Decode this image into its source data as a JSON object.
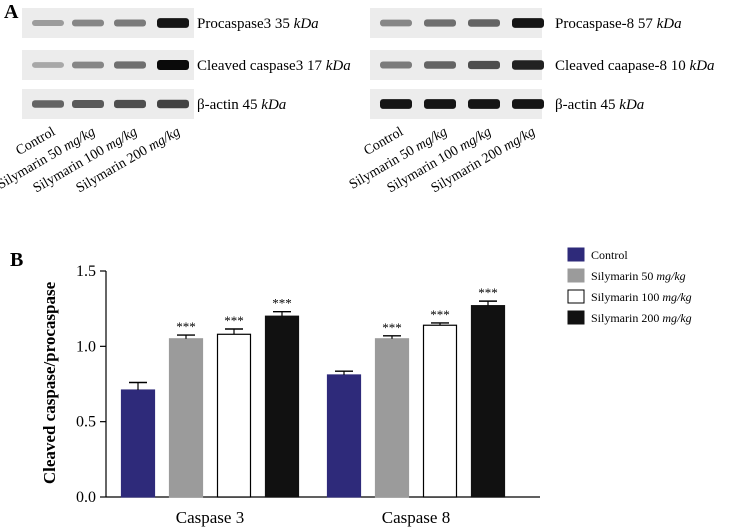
{
  "panel_a_label": "A",
  "panel_b_label": "B",
  "blot_left": {
    "rows": [
      {
        "prefix": "Procaspase3 35 ",
        "unit": "kDa"
      },
      {
        "prefix": "Cleaved caspase3 17 ",
        "unit": "kDa"
      },
      {
        "prefix": "β-actin 45 ",
        "unit": "kDa"
      }
    ],
    "lanes": [
      {
        "prefix": "Control",
        "unit": ""
      },
      {
        "prefix": "Silymarin 50 ",
        "unit": "mg/kg"
      },
      {
        "prefix": "Silymarin 100 ",
        "unit": "mg/kg"
      },
      {
        "prefix": "Silymarin 200 ",
        "unit": "mg/kg"
      }
    ],
    "band_intensity": [
      [
        0.35,
        0.45,
        0.5,
        0.95
      ],
      [
        0.3,
        0.45,
        0.55,
        1.0
      ],
      [
        0.6,
        0.65,
        0.7,
        0.75
      ]
    ]
  },
  "blot_right": {
    "rows": [
      {
        "prefix": "Procaspase-8 57 ",
        "unit": "kDa"
      },
      {
        "prefix": "Cleaved caapase-8 10 ",
        "unit": "kDa"
      },
      {
        "prefix": "β-actin 45 ",
        "unit": "kDa"
      }
    ],
    "lanes": [
      {
        "prefix": "Control",
        "unit": ""
      },
      {
        "prefix": "Silymarin 50 ",
        "unit": "mg/kg"
      },
      {
        "prefix": "Silymarin 100 ",
        "unit": "mg/kg"
      },
      {
        "prefix": "Silymarin 200 ",
        "unit": "mg/kg"
      }
    ],
    "band_intensity": [
      [
        0.45,
        0.55,
        0.6,
        0.95
      ],
      [
        0.5,
        0.6,
        0.7,
        0.9
      ],
      [
        0.95,
        0.95,
        0.95,
        0.95
      ]
    ]
  },
  "chart_data": {
    "type": "bar",
    "title": "",
    "xlabel": "",
    "ylabel": "Cleaved caspase/procaspase",
    "ylim": [
      0,
      1.5
    ],
    "yticks": [
      "0.0",
      "0.5",
      "1.0",
      "1.5"
    ],
    "ytick_values": [
      0,
      0.5,
      1.0,
      1.5
    ],
    "categories": [
      "Caspase 3",
      "Caspase 8"
    ],
    "series": [
      {
        "name": "Control",
        "name_prefix": "Control",
        "name_unit": "",
        "values": [
          0.71,
          0.81
        ],
        "errors": [
          0.05,
          0.025
        ],
        "significance": [
          "",
          ""
        ],
        "fill": "#2e2a7a",
        "stroke": "#2e2a7a"
      },
      {
        "name": "Silymarin 50 mg/kg",
        "name_prefix": "Silymarin 50 ",
        "name_unit": "mg/kg",
        "values": [
          1.05,
          1.05
        ],
        "errors": [
          0.025,
          0.02
        ],
        "significance": [
          "***",
          "***"
        ],
        "fill": "#9b9b9b",
        "stroke": "#9b9b9b"
      },
      {
        "name": "Silymarin 100 mg/kg",
        "name_prefix": "Silymarin 100 ",
        "name_unit": "mg/kg",
        "values": [
          1.08,
          1.14
        ],
        "errors": [
          0.035,
          0.015
        ],
        "significance": [
          "***",
          "***"
        ],
        "fill": "#ffffff",
        "stroke": "#000000"
      },
      {
        "name": "Silymarin 200 mg/kg",
        "name_prefix": "Silymarin 200 ",
        "name_unit": "mg/kg",
        "values": [
          1.2,
          1.27
        ],
        "errors": [
          0.03,
          0.03
        ],
        "significance": [
          "***",
          "***"
        ],
        "fill": "#111111",
        "stroke": "#111111"
      }
    ],
    "legend": "top-right",
    "grid": false
  }
}
